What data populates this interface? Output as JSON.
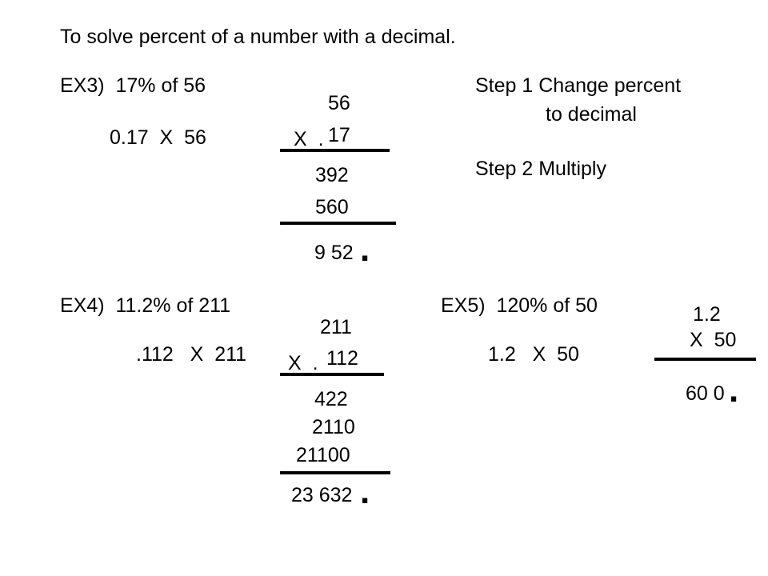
{
  "title": "To solve percent of a number with a decimal.",
  "ex3": {
    "heading": "EX3)  17% of 56",
    "setup": "0.17  X  56",
    "work": {
      "top": "56",
      "times": "X  .",
      "bottom": "17",
      "partial1": "392",
      "partial2": "560",
      "result": "9 52",
      "point": "."
    }
  },
  "steps": {
    "step1_line1": "Step 1 Change percent",
    "step1_line2": "to decimal",
    "step2": "Step 2 Multiply"
  },
  "ex4": {
    "heading": "EX4)  11.2% of 211",
    "setup": ".112   X  211",
    "work": {
      "top": "211",
      "times": "X  .",
      "bottom": "112",
      "partial1": "422",
      "partial2": "2110",
      "partial3": "21100",
      "result": "23 632",
      "point": "."
    }
  },
  "ex5": {
    "heading": "EX5)  120% of 50",
    "setup": "1.2   X  50",
    "work": {
      "top": "1.2",
      "bottom": "X  50",
      "result": "60 0",
      "point": "."
    }
  }
}
